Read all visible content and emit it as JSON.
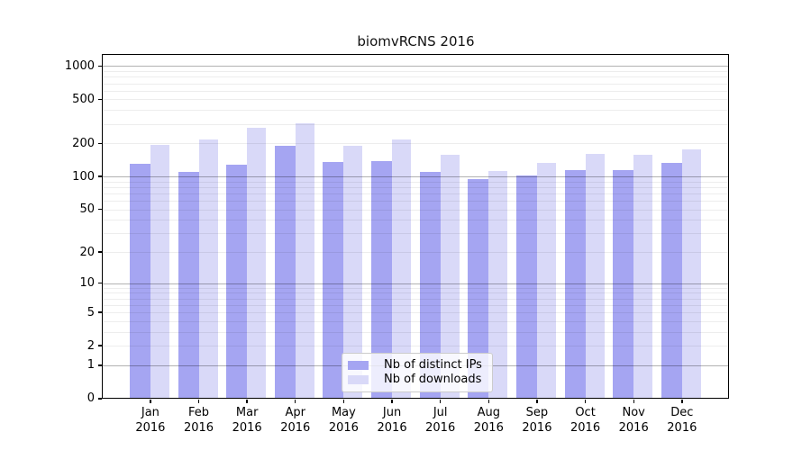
{
  "header": {
    "title": "biomvRCNS 2016"
  },
  "legend": {
    "items": [
      {
        "label": "Nb of distinct IPs",
        "color": "#a5a5f2"
      },
      {
        "label": "Nb of downloads",
        "color": "#d9d9f8"
      }
    ]
  },
  "chart_data": {
    "type": "bar",
    "title": "biomvRCNS 2016",
    "categories": [
      "Jan",
      "Feb",
      "Mar",
      "Apr",
      "May",
      "Jun",
      "Jul",
      "Aug",
      "Sep",
      "Oct",
      "Nov",
      "Dec"
    ],
    "category_year": "2016",
    "series": [
      {
        "name": "Nb of distinct IPs",
        "color": "#a5a5f2",
        "values": [
          131,
          110,
          128,
          191,
          135,
          139,
          110,
          95,
          103,
          114,
          114,
          133
        ]
      },
      {
        "name": "Nb of downloads",
        "color": "#d9d9f8",
        "values": [
          194,
          215,
          277,
          302,
          190,
          215,
          157,
          112,
          133,
          161,
          158,
          177
        ]
      }
    ],
    "yscale": "log1p",
    "yticks": [
      0,
      1,
      2,
      5,
      10,
      20,
      50,
      100,
      200,
      500,
      1000
    ],
    "ylim": [
      0,
      1266
    ],
    "grid": "horizontal log minor + major",
    "legend_position": "lower center"
  }
}
